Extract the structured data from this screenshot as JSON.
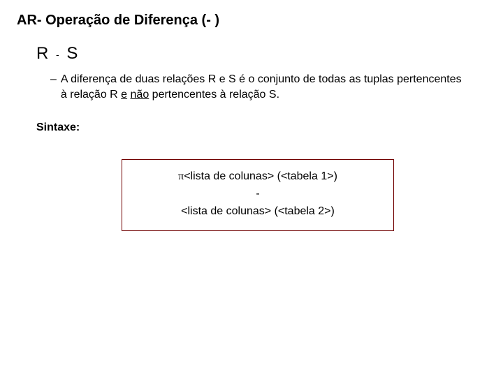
{
  "title": "AR- Operação de Diferença (- )",
  "expression": {
    "left": "R",
    "op": "-",
    "right": "S"
  },
  "bullet": {
    "dash": "–",
    "pre": "A diferença de duas relações R e S é o conjunto de todas as tuplas pertencentes à relação R ",
    "u1": "e",
    "mid": " ",
    "u2": "não",
    "post": " pertencentes à relação S."
  },
  "syntaxLabel": "Sintaxe:",
  "syntaxBox": {
    "line1_pi": "π",
    "line1_rest": "<lista de colunas>  (<tabela 1>)",
    "line2": "-",
    "line3": "<lista de colunas>  (<tabela 2>)"
  }
}
